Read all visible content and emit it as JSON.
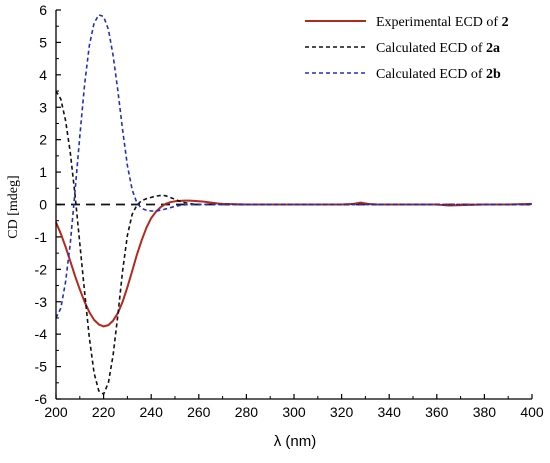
{
  "chart_data": {
    "type": "line",
    "xlabel": "λ (nm)",
    "ylabel": "CD [mdeg]",
    "xlim": [
      200,
      400
    ],
    "ylim": [
      -6,
      6
    ],
    "x_ticks": [
      "200",
      "220",
      "240",
      "260",
      "280",
      "300",
      "320",
      "340",
      "360",
      "380",
      "400"
    ],
    "y_ticks": [
      "6",
      "5",
      "4",
      "3",
      "2",
      "1",
      "0",
      "-1",
      "-2",
      "-3",
      "-4",
      "-5",
      "-6"
    ],
    "zero_line": true,
    "grid": false,
    "legend_position": "top-right",
    "series": [
      {
        "name": "Experimental ECD of 2",
        "legend_prefix": "Experimental ECD of ",
        "legend_bold": "2",
        "color": "#b22a1c",
        "style": "solid",
        "x": [
          200,
          202,
          204,
          206,
          208,
          210,
          212,
          214,
          216,
          218,
          220,
          222,
          224,
          226,
          228,
          230,
          232,
          234,
          236,
          238,
          240,
          242,
          244,
          246,
          248,
          250,
          252,
          254,
          256,
          258,
          260,
          262,
          264,
          266,
          268,
          270,
          280,
          290,
          300,
          310,
          320,
          325,
          328,
          331,
          335,
          340,
          350,
          360,
          365,
          370,
          380,
          390,
          400
        ],
        "y": [
          -0.55,
          -0.9,
          -1.3,
          -1.75,
          -2.2,
          -2.62,
          -3.0,
          -3.32,
          -3.56,
          -3.7,
          -3.76,
          -3.72,
          -3.58,
          -3.35,
          -3.0,
          -2.55,
          -2.05,
          -1.55,
          -1.1,
          -0.72,
          -0.42,
          -0.22,
          -0.08,
          0.02,
          0.07,
          0.1,
          0.11,
          0.12,
          0.12,
          0.11,
          0.1,
          0.09,
          0.07,
          0.05,
          0.03,
          0.02,
          0.0,
          0.0,
          0.0,
          0.0,
          0.0,
          0.02,
          0.06,
          0.02,
          0.0,
          0.0,
          0.0,
          0.0,
          -0.03,
          -0.02,
          0.0,
          0.0,
          0.02
        ]
      },
      {
        "name": "Calculated ECD of 2a",
        "legend_prefix": "Calculated ECD of ",
        "legend_bold": "2a",
        "color": "#111111",
        "style": "dashed",
        "x": [
          200,
          202,
          204,
          206,
          208,
          210,
          212,
          214,
          216,
          218,
          220,
          222,
          224,
          226,
          228,
          230,
          232,
          234,
          236,
          238,
          240,
          242,
          244,
          246,
          248,
          250,
          252,
          254,
          256,
          258,
          260,
          265,
          270,
          280,
          290,
          300,
          320,
          340,
          360,
          380,
          400
        ],
        "y": [
          3.5,
          3.25,
          2.6,
          1.6,
          0.3,
          -1.2,
          -2.7,
          -4.1,
          -5.2,
          -5.75,
          -5.85,
          -5.5,
          -4.65,
          -3.4,
          -2.05,
          -0.95,
          -0.3,
          -0.02,
          0.12,
          0.18,
          0.22,
          0.26,
          0.28,
          0.27,
          0.22,
          0.16,
          0.1,
          0.06,
          0.03,
          0.01,
          0.0,
          0.0,
          0.0,
          0.0,
          0.0,
          0.0,
          0.0,
          0.0,
          0.0,
          0.0,
          0.0
        ]
      },
      {
        "name": "Calculated ECD of 2b",
        "legend_prefix": "Calculated ECD of ",
        "legend_bold": "2b",
        "color": "#1f2ec9",
        "style": "dashed",
        "x": [
          200,
          202,
          204,
          206,
          208,
          210,
          212,
          214,
          216,
          218,
          220,
          222,
          224,
          226,
          228,
          230,
          232,
          234,
          236,
          238,
          240,
          242,
          244,
          246,
          248,
          250,
          252,
          254,
          256,
          258,
          260,
          265,
          270,
          280,
          290,
          300,
          320,
          340,
          360,
          380,
          400
        ],
        "y": [
          -3.5,
          -3.2,
          -2.4,
          -1.2,
          0.4,
          2.1,
          3.7,
          4.9,
          5.6,
          5.85,
          5.8,
          5.4,
          4.6,
          3.5,
          2.3,
          1.2,
          0.45,
          0.05,
          -0.12,
          -0.18,
          -0.2,
          -0.2,
          -0.18,
          -0.14,
          -0.1,
          -0.06,
          -0.03,
          -0.01,
          0.0,
          0.0,
          0.0,
          0.0,
          0.0,
          0.0,
          0.0,
          0.0,
          0.0,
          0.0,
          0.0,
          0.0,
          0.0
        ]
      }
    ]
  }
}
